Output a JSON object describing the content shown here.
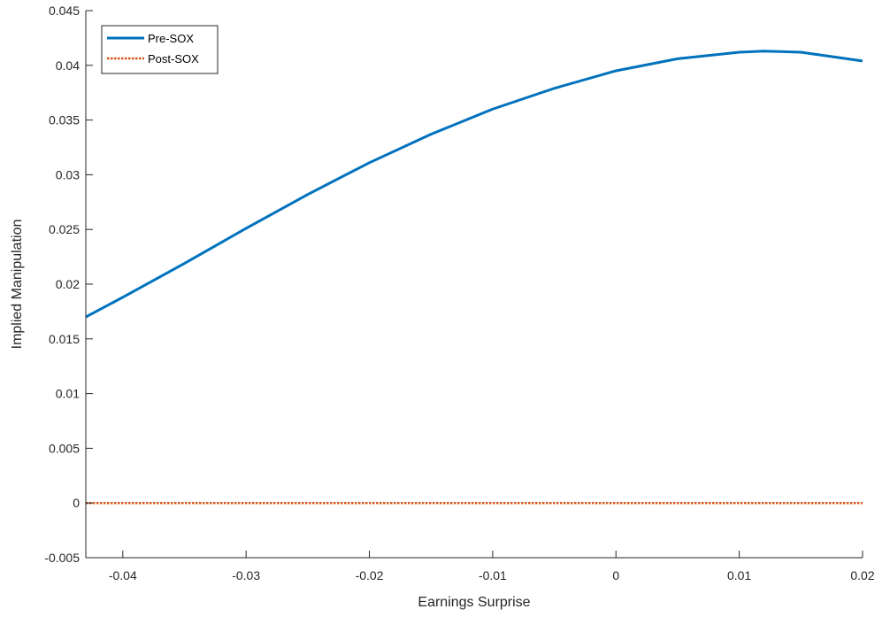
{
  "chart_data": {
    "type": "line",
    "title": "",
    "xlabel": "Earnings Surprise",
    "ylabel": "Implied Manipulation",
    "xlim": [
      -0.043,
      0.02
    ],
    "ylim": [
      -0.005,
      0.045
    ],
    "xticks": [
      -0.04,
      -0.03,
      -0.02,
      -0.01,
      0,
      0.01,
      0.02
    ],
    "xtick_labels": [
      "-0.04",
      "-0.03",
      "-0.02",
      "-0.01",
      "0",
      "0.01",
      "0.02"
    ],
    "yticks": [
      -0.005,
      0,
      0.005,
      0.01,
      0.015,
      0.02,
      0.025,
      0.03,
      0.035,
      0.04,
      0.045
    ],
    "ytick_labels": [
      "-0.005",
      "0",
      "0.005",
      "0.01",
      "0.015",
      "0.02",
      "0.025",
      "0.03",
      "0.035",
      "0.04",
      "0.045"
    ],
    "grid": false,
    "legend_position": "top-left",
    "series": [
      {
        "name": "Pre-SOX",
        "color": "#0072BD",
        "style": "solid",
        "x": [
          -0.043,
          -0.04,
          -0.035,
          -0.03,
          -0.025,
          -0.02,
          -0.015,
          -0.01,
          -0.005,
          0,
          0.005,
          0.01,
          0.012,
          0.015,
          0.02
        ],
        "y": [
          0.017,
          0.0188,
          0.0219,
          0.0251,
          0.0282,
          0.0311,
          0.0337,
          0.036,
          0.0379,
          0.0395,
          0.0406,
          0.0412,
          0.0413,
          0.0412,
          0.0404
        ]
      },
      {
        "name": "Post-SOX",
        "color": "#D95319",
        "style": "dotted",
        "x": [
          -0.043,
          0.02
        ],
        "y": [
          0,
          0
        ]
      }
    ]
  }
}
